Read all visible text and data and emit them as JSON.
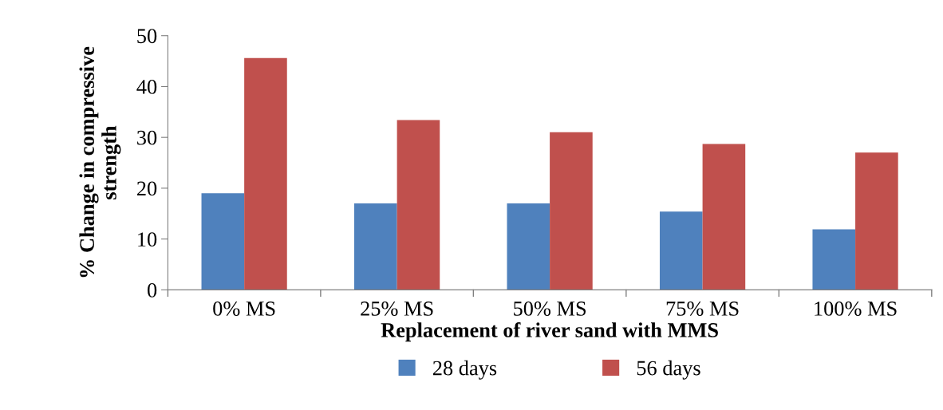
{
  "chart_data": {
    "type": "bar",
    "xlabel": "Replacement of river sand with MMS",
    "ylabel": "% Change in compressive\nstrength",
    "categories": [
      "0% MS",
      "25% MS",
      "50% MS",
      "75% MS",
      "100% MS"
    ],
    "series": [
      {
        "name": "28 days",
        "color": "#4f81bd",
        "values": [
          19.0,
          17.0,
          17.0,
          15.4,
          11.9
        ]
      },
      {
        "name": "56 days",
        "color": "#c0504d",
        "values": [
          45.6,
          33.4,
          31.0,
          28.7,
          27.0
        ]
      }
    ],
    "ylim": [
      0,
      50
    ],
    "yticks": [
      0,
      10,
      20,
      30,
      40,
      50
    ],
    "grid": false,
    "legend": "bottom"
  }
}
